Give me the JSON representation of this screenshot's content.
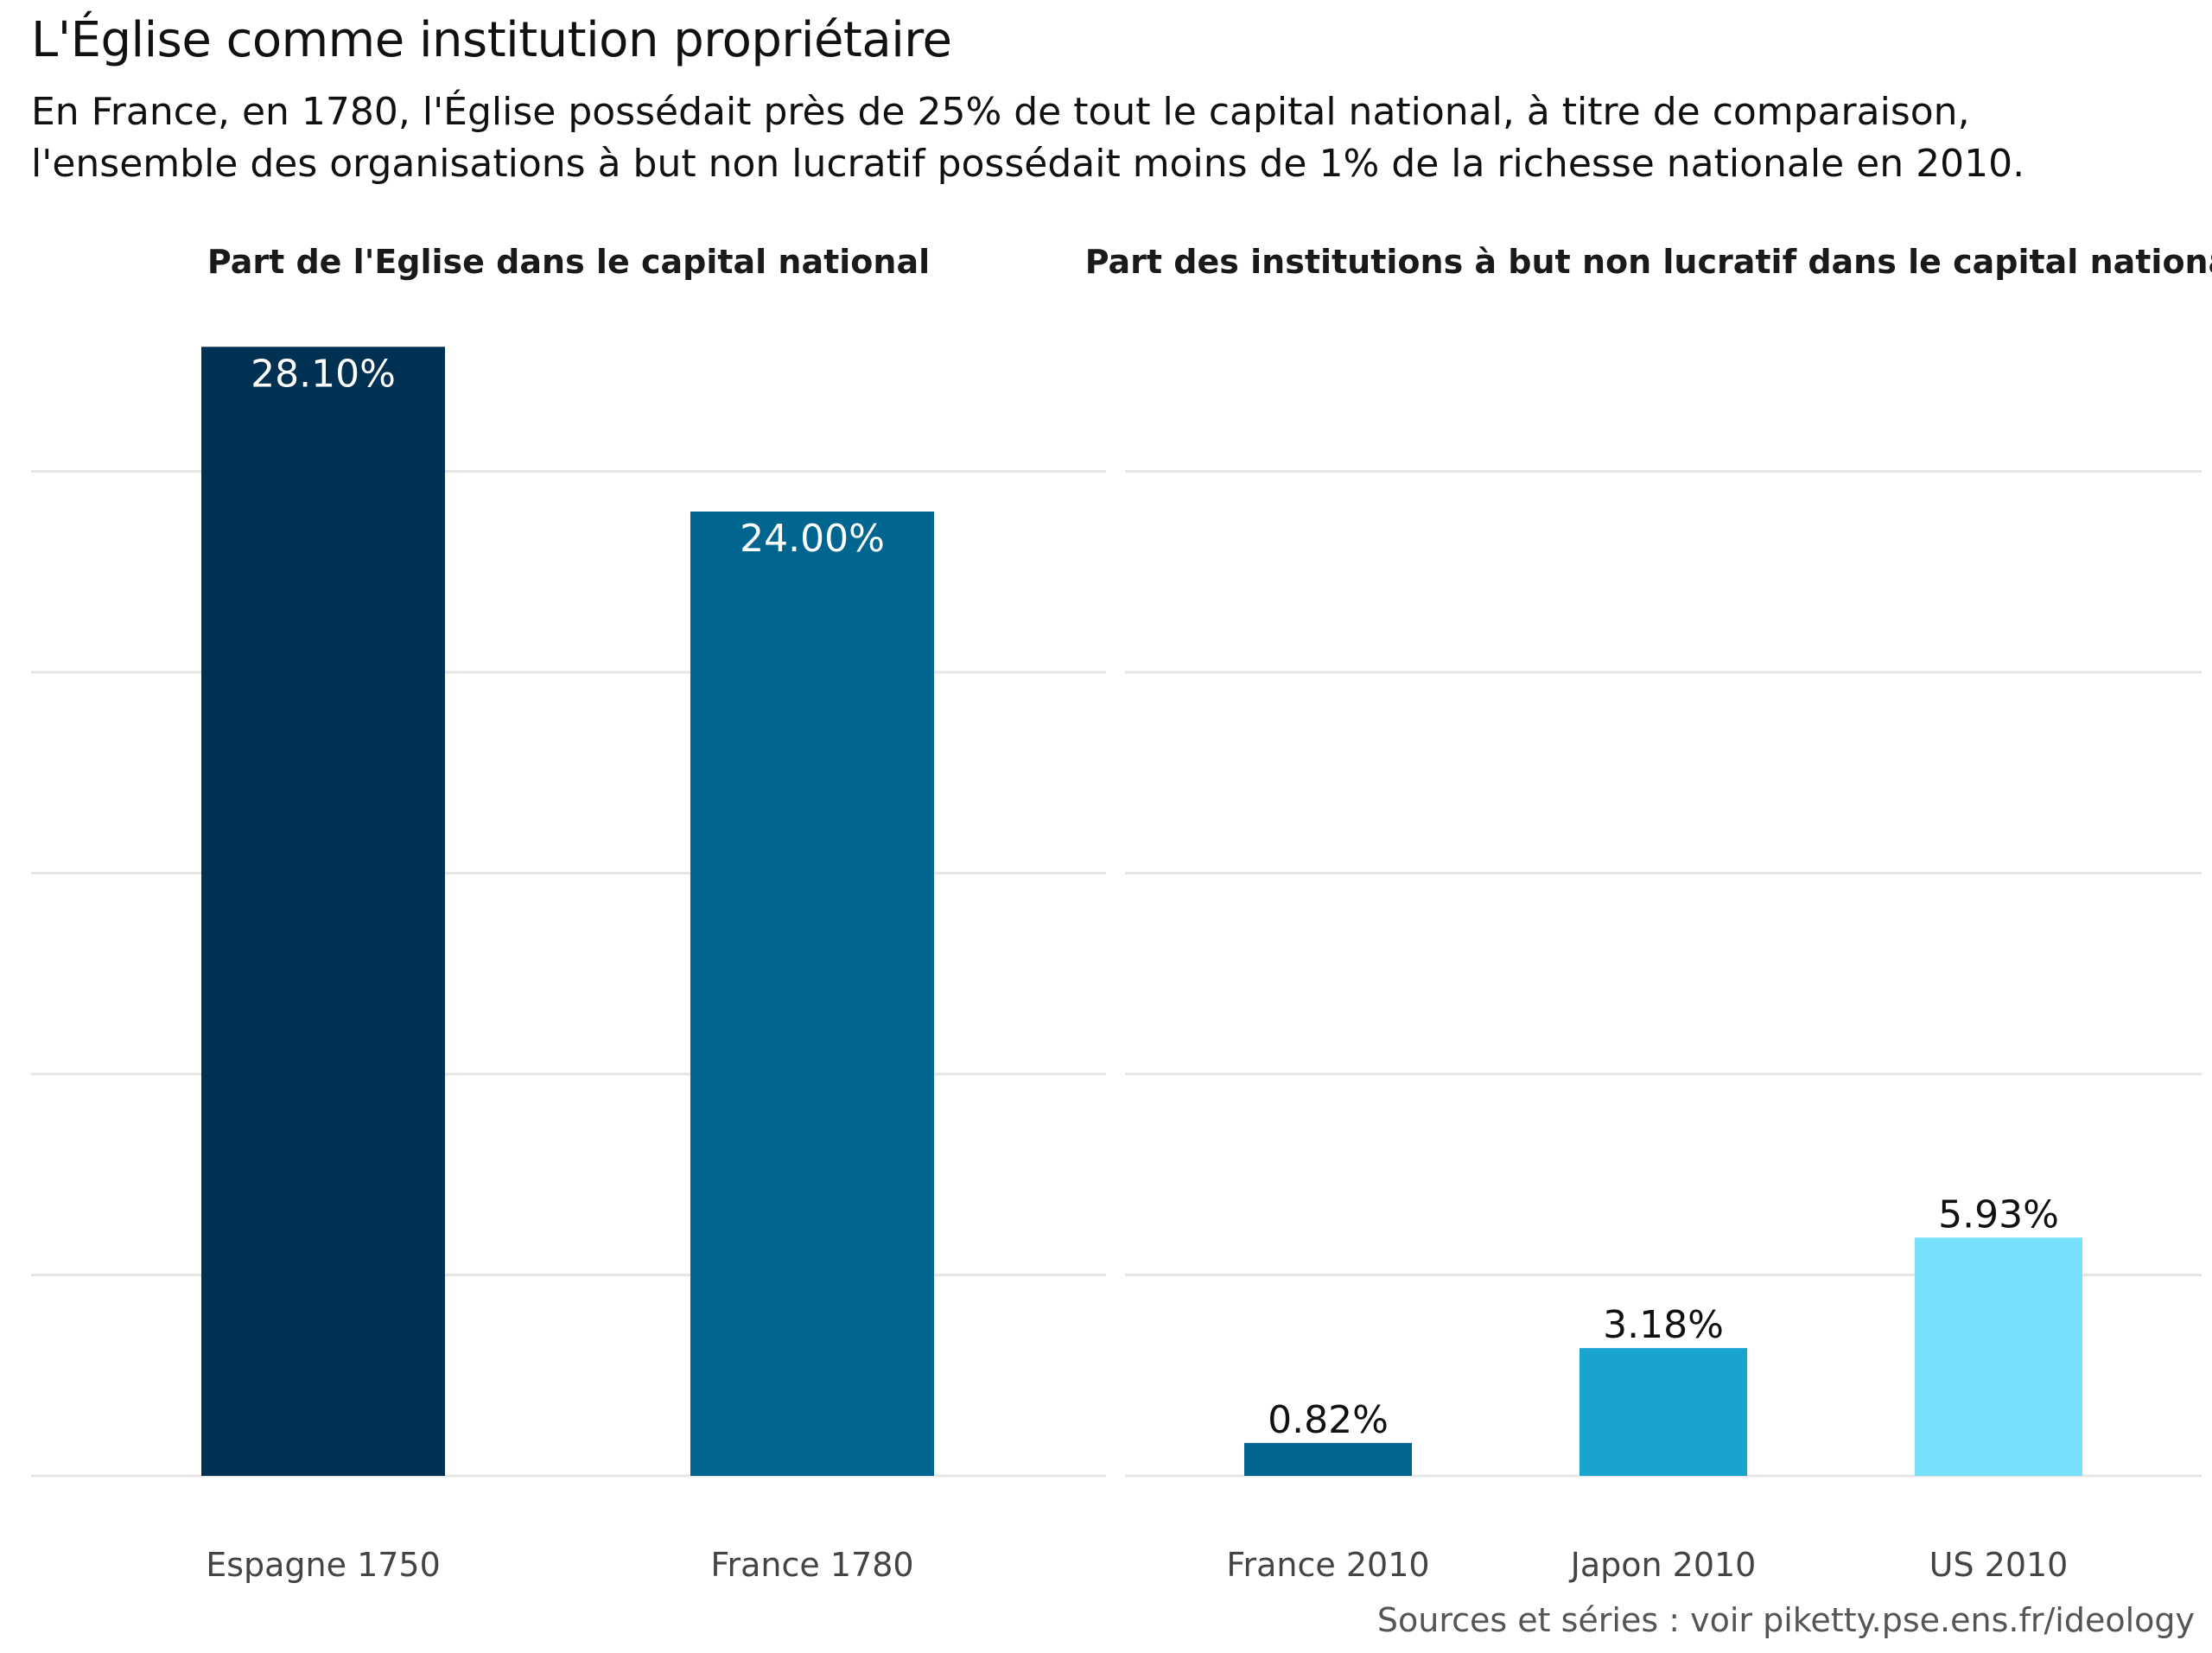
{
  "title": "L'Église comme institution propriétaire",
  "subtitle_lines": [
    "En France, en 1780,  l'Église possédait près de 25% de tout le capital national, à titre de comparaison,",
    "l'ensemble des organisations à but non lucratif possédait moins de 1% de la richesse nationale en 2010."
  ],
  "caption": "Sources et séries : voir piketty.pse.ens.fr/ideology",
  "colors": {
    "espagne_1750": "#003152",
    "france_1780": "#00668f",
    "france_2010": "#00668f",
    "japon_2010": "#19a3cf",
    "us_2010": "#77e1fb",
    "grid": "#e5e5e5"
  },
  "chart_data": [
    {
      "type": "bar",
      "title": "Part de l'Eglise dans le capital national",
      "categories": [
        "Espagne 1750",
        "France 1780"
      ],
      "values": [
        28.1,
        24.0
      ],
      "labels": [
        "28.10%",
        "24.00%"
      ],
      "ylim": [
        0,
        30
      ],
      "gridlines": [
        0,
        5,
        10,
        15,
        20,
        25
      ],
      "grid": true,
      "label_position": "inside-top"
    },
    {
      "type": "bar",
      "title": "Part des institutions à but non lucratif dans le capital national",
      "categories": [
        "France 2010",
        "Japon 2010",
        "US 2010"
      ],
      "values": [
        0.82,
        3.18,
        5.93
      ],
      "labels": [
        "0.82%",
        "3.18%",
        "5.93%"
      ],
      "ylim": [
        0,
        30
      ],
      "gridlines": [
        0,
        5,
        10,
        15,
        20,
        25
      ],
      "grid": true,
      "label_position": "above"
    }
  ]
}
